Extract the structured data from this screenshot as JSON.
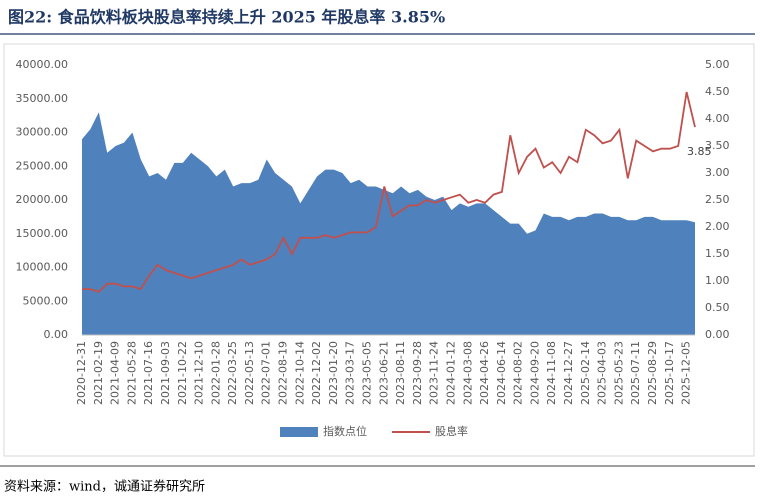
{
  "chart_data": {
    "type": "area-line",
    "title": "图22:    食品饮料板块股息率持续上升 2025 年股息率 3.85%",
    "source": "资料来源：wind，诚通证券研究所",
    "annotation": "3.85",
    "categories": [
      "2020-12-31",
      null,
      "2021-02-19",
      null,
      "2021-04-09",
      null,
      "2021-05-28",
      null,
      "2021-07-16",
      null,
      "2021-09-03",
      null,
      "2021-10-22",
      null,
      "2021-12-10",
      null,
      "2022-01-28",
      null,
      "2022-03-25",
      null,
      "2022-05-13",
      null,
      "2022-07-01",
      null,
      "2022-08-19",
      null,
      "2022-10-14",
      null,
      "2022-12-02",
      null,
      "2023-01-20",
      null,
      "2023-03-17",
      null,
      "2023-05-05",
      null,
      "2023-06-21",
      null,
      "2023-08-11",
      null,
      "2023-09-28",
      null,
      "2023-11-24",
      null,
      "2024-01-12",
      null,
      "2024-03-08",
      null,
      "2024-04-26",
      null,
      "2024-06-14",
      null,
      "2024-08-02",
      null,
      "2024-09-20",
      null,
      "2024-11-08",
      null,
      "2024-12-27",
      null,
      "2025-02-14",
      null,
      "2025-04-03",
      null,
      "2025-05-23",
      null,
      "2025-07-11",
      null,
      "2025-08-29",
      null,
      "2025-10-17",
      null,
      "2025-12-05",
      null
    ],
    "series": [
      {
        "name": "指数点位",
        "color": "#4f81bd",
        "values": [
          29000,
          30500,
          33000,
          27000,
          28000,
          28500,
          30000,
          26000,
          23500,
          24000,
          23000,
          25500,
          25500,
          27000,
          26000,
          25000,
          23500,
          24500,
          22000,
          22500,
          22500,
          23000,
          26000,
          24000,
          23000,
          22000,
          19500,
          21500,
          23500,
          24500,
          24500,
          24000,
          22500,
          23000,
          22000,
          22000,
          21500,
          21000,
          22000,
          21000,
          21500,
          20500,
          20000,
          20500,
          18500,
          19500,
          19000,
          19500,
          19500,
          18500,
          17500,
          16500,
          16500,
          15000,
          15500,
          18000,
          17500,
          17500,
          17000,
          17500,
          17500,
          18000,
          18000,
          17500,
          17500,
          17000,
          17000,
          17500,
          17500,
          17000,
          17000,
          17000,
          17000,
          16700
        ]
      },
      {
        "name": "股息率",
        "color": "#c0504d",
        "axis": "y2",
        "values": [
          0.85,
          0.85,
          0.8,
          0.95,
          0.95,
          0.9,
          0.9,
          0.85,
          1.1,
          1.3,
          1.2,
          1.15,
          1.1,
          1.05,
          1.1,
          1.15,
          1.2,
          1.25,
          1.3,
          1.4,
          1.3,
          1.35,
          1.4,
          1.5,
          1.8,
          1.5,
          1.8,
          1.8,
          1.8,
          1.85,
          1.8,
          1.85,
          1.9,
          1.9,
          1.9,
          2.0,
          2.75,
          2.2,
          2.3,
          2.4,
          2.4,
          2.5,
          2.45,
          2.5,
          2.55,
          2.6,
          2.45,
          2.5,
          2.45,
          2.6,
          2.65,
          3.7,
          3.0,
          3.3,
          3.45,
          3.1,
          3.2,
          3.0,
          3.3,
          3.2,
          3.8,
          3.7,
          3.55,
          3.6,
          3.8,
          2.9,
          3.6,
          3.5,
          3.4,
          3.45,
          3.45,
          3.5,
          4.5,
          3.85
        ]
      }
    ],
    "ylim": [
      0,
      40000
    ],
    "yticks": [
      {
        "value": 0,
        "label": "0.00"
      },
      {
        "value": 5000,
        "label": "5000.00"
      },
      {
        "value": 10000,
        "label": "10000.00"
      },
      {
        "value": 15000,
        "label": "15000.00"
      },
      {
        "value": 20000,
        "label": "20000.00"
      },
      {
        "value": 25000,
        "label": "25000.00"
      },
      {
        "value": 30000,
        "label": "30000.00"
      },
      {
        "value": 35000,
        "label": "35000.00"
      },
      {
        "value": 40000,
        "label": "40000.00"
      }
    ],
    "y2lim": [
      0,
      5
    ],
    "y2ticks": [
      {
        "value": 0,
        "label": "0.00"
      },
      {
        "value": 0.5,
        "label": "0.50"
      },
      {
        "value": 1,
        "label": "1.00"
      },
      {
        "value": 1.5,
        "label": "1.50"
      },
      {
        "value": 2,
        "label": "2.00"
      },
      {
        "value": 2.5,
        "label": "2.50"
      },
      {
        "value": 3,
        "label": "3.00"
      },
      {
        "value": 3.5,
        "label": "3.50"
      },
      {
        "value": 4,
        "label": "4.00"
      },
      {
        "value": 4.5,
        "label": "4.50"
      },
      {
        "value": 5,
        "label": "5.00"
      }
    ],
    "legend": "bottom"
  }
}
